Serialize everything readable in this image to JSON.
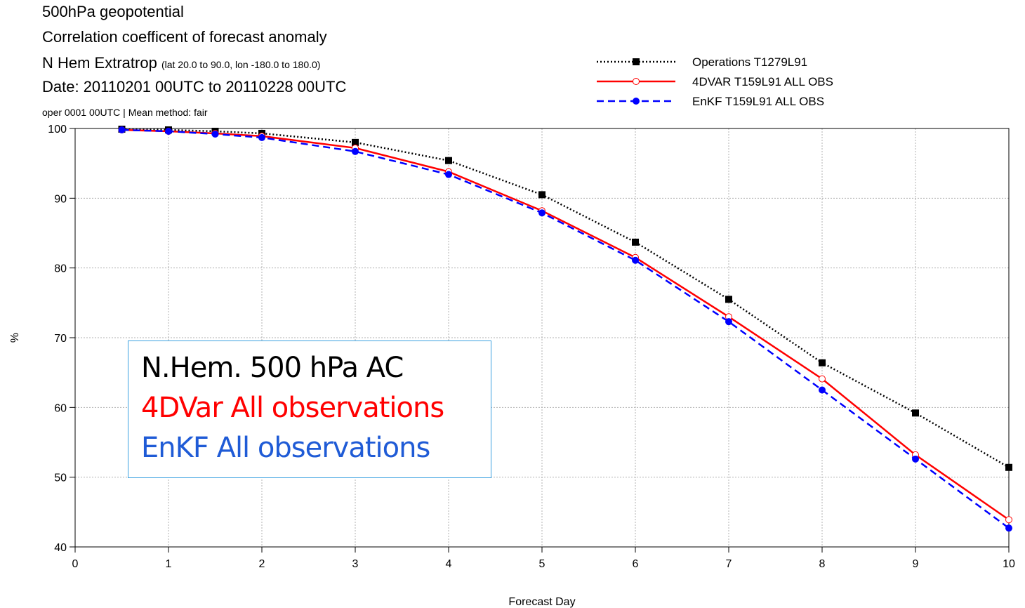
{
  "header": {
    "line1": "500hPa geopotential",
    "line2": "Correlation coefficent of forecast anomaly",
    "line3_main": "N Hem Extratrop",
    "line3_small": "(lat  20.0 to 90.0, lon  -180.0 to  180.0)",
    "line4": "Date: 20110201 00UTC to 20110228 00UTC",
    "line5": "oper 0001 00UTC | Mean method: fair"
  },
  "annotation": {
    "line1": "N.Hem. 500 hPa AC",
    "line2": "4DVar All observations",
    "line3": "EnKF All observations",
    "colors": {
      "line1": "#000000",
      "line2": "#ff0000",
      "line3": "#1f5bd6"
    }
  },
  "chart_data": {
    "type": "line",
    "xlabel": "Forecast Day",
    "ylabel": "%",
    "xlim": [
      0,
      10
    ],
    "ylim": [
      40,
      100
    ],
    "xticks": [
      0,
      1,
      2,
      3,
      4,
      5,
      6,
      7,
      8,
      9,
      10
    ],
    "yticks": [
      40,
      50,
      60,
      70,
      80,
      90,
      100
    ],
    "grid": true,
    "legend_position": "top-right, above plot",
    "series": [
      {
        "name": "Operations T1279L91",
        "color": "#000000",
        "style": "dotted",
        "marker": "square",
        "x": [
          0.5,
          1,
          1.5,
          2,
          3,
          4,
          5,
          6,
          7,
          8,
          9,
          10
        ],
        "values": [
          99.9,
          99.8,
          99.6,
          99.3,
          98.0,
          95.4,
          90.5,
          83.7,
          75.5,
          66.4,
          59.2,
          51.4
        ]
      },
      {
        "name": "4DVAR T159L91 ALL OBS",
        "color": "#ff0000",
        "style": "solid",
        "marker": "open-circle",
        "x": [
          0.5,
          1,
          1.5,
          2,
          3,
          4,
          5,
          6,
          7,
          8,
          9,
          10
        ],
        "values": [
          99.8,
          99.6,
          99.3,
          98.9,
          97.2,
          93.8,
          88.2,
          81.5,
          73.0,
          64.1,
          53.2,
          43.9
        ]
      },
      {
        "name": "EnKF T159L91 ALL OBS",
        "color": "#0000ff",
        "style": "dashed",
        "marker": "filled-circle",
        "x": [
          0.5,
          1,
          1.5,
          2,
          3,
          4,
          5,
          6,
          7,
          8,
          9,
          10
        ],
        "values": [
          99.8,
          99.6,
          99.2,
          98.7,
          96.7,
          93.4,
          87.9,
          81.1,
          72.3,
          62.5,
          52.6,
          42.7
        ]
      }
    ]
  }
}
